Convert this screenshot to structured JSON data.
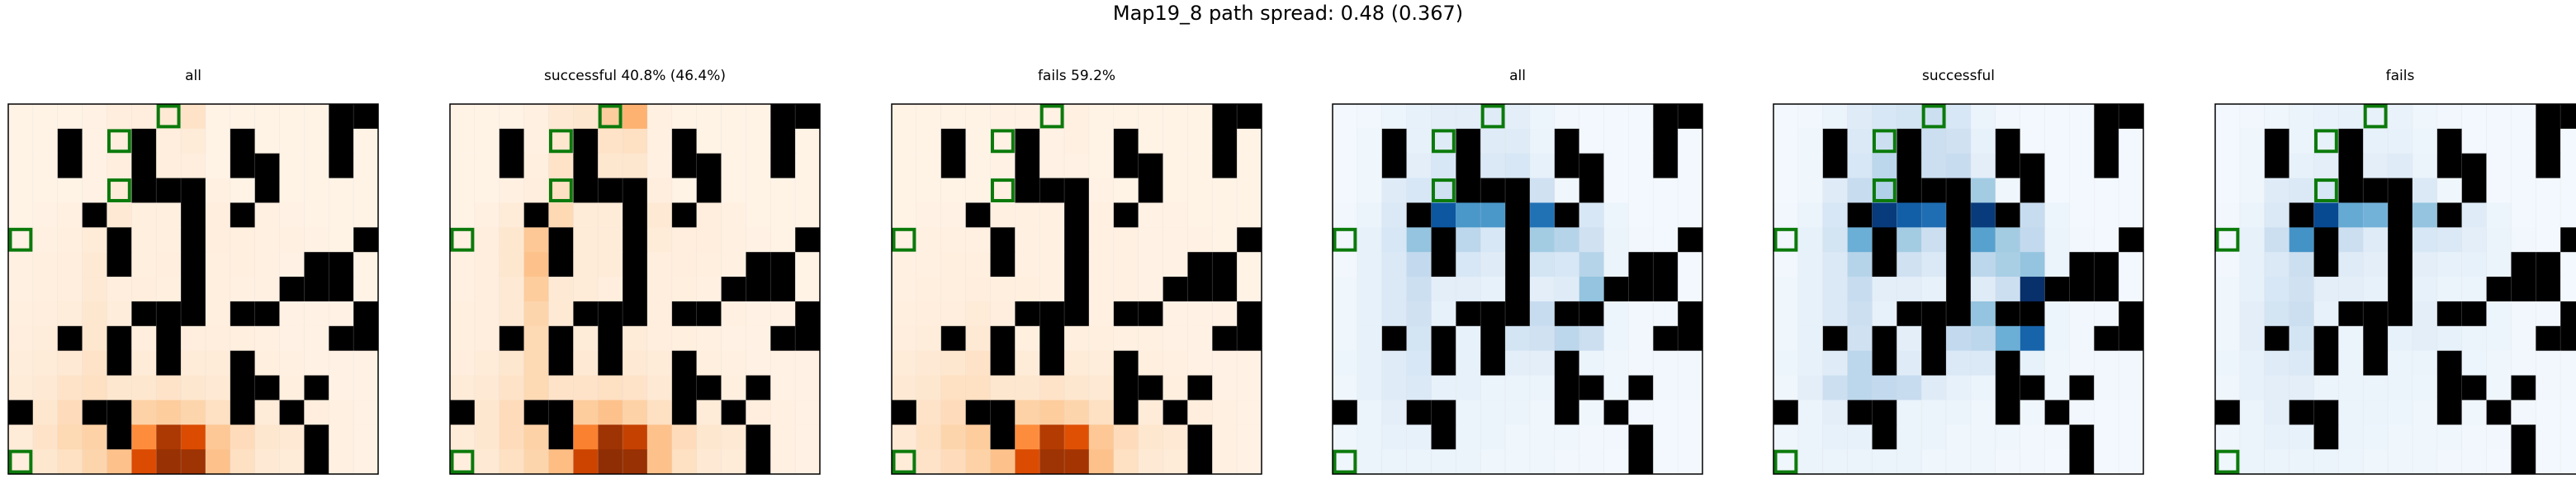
{
  "figure": {
    "suptitle": "Map19_8 path spread: 0.48 (0.367)"
  },
  "chart_data": [
    {
      "type": "heatmap",
      "title": "all",
      "colormap": "Oranges"
    },
    {
      "type": "heatmap",
      "title": "successful 40.8% (46.4%)",
      "colormap": "Oranges"
    },
    {
      "type": "heatmap",
      "title": "fails 59.2%",
      "colormap": "Oranges"
    },
    {
      "type": "heatmap",
      "title": "all",
      "colormap": "Blues"
    },
    {
      "type": "heatmap",
      "title": "successful",
      "colormap": "Blues"
    },
    {
      "type": "heatmap",
      "title": "fails",
      "colormap": "Blues"
    }
  ],
  "grid": {
    "rows": 15,
    "cols": 15
  },
  "walls": [
    [
      0,
      13
    ],
    [
      0,
      14
    ],
    [
      1,
      2
    ],
    [
      1,
      5
    ],
    [
      1,
      9
    ],
    [
      1,
      13
    ],
    [
      2,
      2
    ],
    [
      2,
      5
    ],
    [
      2,
      9
    ],
    [
      2,
      10
    ],
    [
      2,
      13
    ],
    [
      3,
      5
    ],
    [
      3,
      6
    ],
    [
      3,
      7
    ],
    [
      3,
      10
    ],
    [
      4,
      3
    ],
    [
      4,
      7
    ],
    [
      4,
      9
    ],
    [
      5,
      4
    ],
    [
      5,
      7
    ],
    [
      5,
      14
    ],
    [
      6,
      4
    ],
    [
      6,
      7
    ],
    [
      6,
      12
    ],
    [
      6,
      13
    ],
    [
      7,
      7
    ],
    [
      7,
      11
    ],
    [
      7,
      12
    ],
    [
      7,
      13
    ],
    [
      8,
      5
    ],
    [
      8,
      6
    ],
    [
      8,
      7
    ],
    [
      8,
      9
    ],
    [
      8,
      10
    ],
    [
      8,
      14
    ],
    [
      9,
      2
    ],
    [
      9,
      4
    ],
    [
      9,
      6
    ],
    [
      9,
      13
    ],
    [
      9,
      14
    ],
    [
      10,
      4
    ],
    [
      10,
      6
    ],
    [
      10,
      9
    ],
    [
      11,
      9
    ],
    [
      11,
      10
    ],
    [
      11,
      12
    ],
    [
      12,
      0
    ],
    [
      12,
      3
    ],
    [
      12,
      4
    ],
    [
      12,
      9
    ],
    [
      12,
      11
    ],
    [
      13,
      4
    ],
    [
      13,
      12
    ],
    [
      14,
      12
    ]
  ],
  "markers": [
    [
      0,
      6
    ],
    [
      1,
      4
    ],
    [
      3,
      4
    ],
    [
      5,
      0
    ],
    [
      14,
      0
    ]
  ],
  "heat_all_orange": [
    [
      0.02,
      0.02,
      0.02,
      0.03,
      0.06,
      0.06,
      0.1,
      0.14,
      0.02,
      0.02,
      0.02,
      0.02,
      0.02,
      0.0,
      0.0
    ],
    [
      0.02,
      0.02,
      0.0,
      0.03,
      0.06,
      0.0,
      0.06,
      0.08,
      0.02,
      0.0,
      0.02,
      0.02,
      0.02,
      0.0,
      0.02
    ],
    [
      0.02,
      0.02,
      0.0,
      0.03,
      0.06,
      0.0,
      0.06,
      0.06,
      0.02,
      0.0,
      0.0,
      0.02,
      0.02,
      0.0,
      0.02
    ],
    [
      0.02,
      0.02,
      0.02,
      0.03,
      0.08,
      0.0,
      0.0,
      0.0,
      0.04,
      0.02,
      0.0,
      0.02,
      0.02,
      0.02,
      0.02
    ],
    [
      0.02,
      0.03,
      0.04,
      0.0,
      0.1,
      0.05,
      0.05,
      0.0,
      0.06,
      0.0,
      0.04,
      0.03,
      0.02,
      0.02,
      0.02
    ],
    [
      0.03,
      0.04,
      0.05,
      0.08,
      0.0,
      0.05,
      0.05,
      0.0,
      0.06,
      0.05,
      0.04,
      0.04,
      0.03,
      0.02,
      0.0
    ],
    [
      0.04,
      0.05,
      0.06,
      0.1,
      0.0,
      0.05,
      0.06,
      0.0,
      0.05,
      0.05,
      0.04,
      0.03,
      0.0,
      0.0,
      0.02
    ],
    [
      0.04,
      0.05,
      0.06,
      0.1,
      0.06,
      0.06,
      0.05,
      0.0,
      0.05,
      0.04,
      0.04,
      0.0,
      0.0,
      0.0,
      0.02
    ],
    [
      0.05,
      0.06,
      0.07,
      0.12,
      0.07,
      0.0,
      0.0,
      0.0,
      0.05,
      0.0,
      0.0,
      0.03,
      0.03,
      0.03,
      0.0
    ],
    [
      0.06,
      0.07,
      0.0,
      0.12,
      0.0,
      0.06,
      0.0,
      0.06,
      0.06,
      0.05,
      0.04,
      0.03,
      0.03,
      0.0,
      0.0
    ],
    [
      0.07,
      0.08,
      0.1,
      0.14,
      0.0,
      0.08,
      0.0,
      0.08,
      0.08,
      0.0,
      0.05,
      0.04,
      0.03,
      0.03,
      0.03
    ],
    [
      0.08,
      0.1,
      0.14,
      0.16,
      0.12,
      0.12,
      0.14,
      0.12,
      0.1,
      0.0,
      0.0,
      0.05,
      0.04,
      0.03,
      0.03
    ],
    [
      0.0,
      0.12,
      0.18,
      0.0,
      0.0,
      0.24,
      0.26,
      0.22,
      0.16,
      0.0,
      0.08,
      0.0,
      0.06,
      0.04,
      0.03
    ],
    [
      0.08,
      0.14,
      0.2,
      0.24,
      0.0,
      0.5,
      0.86,
      0.74,
      0.28,
      0.18,
      0.12,
      0.1,
      0.0,
      0.04,
      0.03
    ],
    [
      0.06,
      0.12,
      0.16,
      0.22,
      0.3,
      0.74,
      0.92,
      0.9,
      0.3,
      0.16,
      0.1,
      0.08,
      0.0,
      0.04,
      0.03
    ]
  ],
  "heat_success_orange": [
    [
      0.02,
      0.02,
      0.02,
      0.04,
      0.1,
      0.12,
      0.26,
      0.36,
      0.04,
      0.02,
      0.02,
      0.02,
      0.02,
      0.0,
      0.0
    ],
    [
      0.02,
      0.02,
      0.0,
      0.04,
      0.12,
      0.0,
      0.14,
      0.16,
      0.04,
      0.0,
      0.02,
      0.02,
      0.02,
      0.0,
      0.02
    ],
    [
      0.02,
      0.02,
      0.0,
      0.05,
      0.14,
      0.0,
      0.12,
      0.12,
      0.04,
      0.0,
      0.0,
      0.02,
      0.02,
      0.0,
      0.02
    ],
    [
      0.02,
      0.02,
      0.04,
      0.06,
      0.16,
      0.0,
      0.0,
      0.0,
      0.06,
      0.02,
      0.0,
      0.02,
      0.02,
      0.02,
      0.02
    ],
    [
      0.02,
      0.04,
      0.08,
      0.0,
      0.2,
      0.08,
      0.08,
      0.0,
      0.1,
      0.0,
      0.06,
      0.04,
      0.02,
      0.02,
      0.02
    ],
    [
      0.04,
      0.06,
      0.12,
      0.28,
      0.0,
      0.08,
      0.08,
      0.0,
      0.08,
      0.06,
      0.06,
      0.04,
      0.03,
      0.02,
      0.0
    ],
    [
      0.04,
      0.06,
      0.12,
      0.3,
      0.0,
      0.08,
      0.08,
      0.0,
      0.06,
      0.06,
      0.05,
      0.04,
      0.0,
      0.0,
      0.02
    ],
    [
      0.04,
      0.06,
      0.1,
      0.26,
      0.1,
      0.08,
      0.06,
      0.0,
      0.06,
      0.05,
      0.04,
      0.0,
      0.0,
      0.0,
      0.02
    ],
    [
      0.05,
      0.06,
      0.1,
      0.22,
      0.1,
      0.0,
      0.0,
      0.0,
      0.06,
      0.0,
      0.0,
      0.04,
      0.03,
      0.03,
      0.0
    ],
    [
      0.05,
      0.06,
      0.0,
      0.2,
      0.0,
      0.08,
      0.0,
      0.08,
      0.06,
      0.05,
      0.04,
      0.03,
      0.03,
      0.0,
      0.0
    ],
    [
      0.06,
      0.08,
      0.12,
      0.2,
      0.0,
      0.1,
      0.0,
      0.1,
      0.08,
      0.0,
      0.05,
      0.04,
      0.03,
      0.03,
      0.03
    ],
    [
      0.08,
      0.1,
      0.14,
      0.2,
      0.14,
      0.14,
      0.16,
      0.14,
      0.1,
      0.0,
      0.0,
      0.05,
      0.04,
      0.03,
      0.03
    ],
    [
      0.0,
      0.12,
      0.18,
      0.0,
      0.0,
      0.26,
      0.3,
      0.24,
      0.16,
      0.0,
      0.08,
      0.0,
      0.06,
      0.04,
      0.03
    ],
    [
      0.08,
      0.12,
      0.18,
      0.24,
      0.0,
      0.54,
      0.9,
      0.8,
      0.3,
      0.18,
      0.12,
      0.1,
      0.0,
      0.04,
      0.03
    ],
    [
      0.06,
      0.1,
      0.16,
      0.22,
      0.32,
      0.78,
      0.95,
      0.92,
      0.3,
      0.16,
      0.1,
      0.08,
      0.0,
      0.04,
      0.03
    ]
  ],
  "heat_fail_orange": [
    [
      0.02,
      0.02,
      0.02,
      0.02,
      0.03,
      0.03,
      0.03,
      0.04,
      0.02,
      0.02,
      0.02,
      0.02,
      0.02,
      0.0,
      0.0
    ],
    [
      0.02,
      0.02,
      0.0,
      0.02,
      0.03,
      0.0,
      0.03,
      0.04,
      0.02,
      0.0,
      0.02,
      0.02,
      0.02,
      0.0,
      0.02
    ],
    [
      0.02,
      0.02,
      0.0,
      0.02,
      0.03,
      0.0,
      0.03,
      0.03,
      0.02,
      0.0,
      0.0,
      0.02,
      0.02,
      0.0,
      0.02
    ],
    [
      0.02,
      0.02,
      0.02,
      0.02,
      0.04,
      0.0,
      0.0,
      0.0,
      0.03,
      0.02,
      0.0,
      0.02,
      0.02,
      0.02,
      0.02
    ],
    [
      0.02,
      0.03,
      0.03,
      0.0,
      0.04,
      0.04,
      0.04,
      0.0,
      0.04,
      0.0,
      0.03,
      0.03,
      0.02,
      0.02,
      0.02
    ],
    [
      0.03,
      0.04,
      0.04,
      0.04,
      0.0,
      0.04,
      0.04,
      0.0,
      0.04,
      0.04,
      0.03,
      0.03,
      0.03,
      0.02,
      0.0
    ],
    [
      0.04,
      0.04,
      0.05,
      0.05,
      0.0,
      0.04,
      0.04,
      0.0,
      0.04,
      0.04,
      0.03,
      0.03,
      0.0,
      0.0,
      0.02
    ],
    [
      0.04,
      0.05,
      0.05,
      0.06,
      0.05,
      0.05,
      0.04,
      0.0,
      0.04,
      0.04,
      0.03,
      0.0,
      0.0,
      0.0,
      0.02
    ],
    [
      0.05,
      0.06,
      0.06,
      0.08,
      0.06,
      0.0,
      0.0,
      0.0,
      0.04,
      0.0,
      0.0,
      0.03,
      0.03,
      0.03,
      0.0
    ],
    [
      0.06,
      0.07,
      0.0,
      0.1,
      0.0,
      0.05,
      0.0,
      0.05,
      0.05,
      0.04,
      0.04,
      0.03,
      0.03,
      0.0,
      0.0
    ],
    [
      0.08,
      0.1,
      0.12,
      0.14,
      0.0,
      0.08,
      0.0,
      0.08,
      0.07,
      0.0,
      0.05,
      0.04,
      0.03,
      0.03,
      0.03
    ],
    [
      0.1,
      0.12,
      0.16,
      0.16,
      0.12,
      0.12,
      0.14,
      0.12,
      0.1,
      0.0,
      0.0,
      0.05,
      0.04,
      0.03,
      0.03
    ],
    [
      0.0,
      0.14,
      0.18,
      0.0,
      0.0,
      0.24,
      0.26,
      0.22,
      0.16,
      0.0,
      0.08,
      0.0,
      0.06,
      0.04,
      0.03
    ],
    [
      0.1,
      0.16,
      0.22,
      0.26,
      0.0,
      0.5,
      0.84,
      0.72,
      0.28,
      0.18,
      0.12,
      0.1,
      0.0,
      0.04,
      0.03
    ],
    [
      0.08,
      0.14,
      0.18,
      0.24,
      0.3,
      0.74,
      0.9,
      0.88,
      0.3,
      0.16,
      0.1,
      0.08,
      0.0,
      0.04,
      0.03
    ]
  ],
  "heat_all_blue": [
    [
      0.02,
      0.03,
      0.05,
      0.08,
      0.1,
      0.1,
      0.12,
      0.1,
      0.05,
      0.03,
      0.02,
      0.02,
      0.02,
      0.0,
      0.0
    ],
    [
      0.02,
      0.04,
      0.0,
      0.08,
      0.12,
      0.0,
      0.12,
      0.12,
      0.06,
      0.0,
      0.02,
      0.02,
      0.02,
      0.0,
      0.02
    ],
    [
      0.02,
      0.04,
      0.0,
      0.1,
      0.16,
      0.0,
      0.14,
      0.16,
      0.08,
      0.0,
      0.0,
      0.02,
      0.02,
      0.0,
      0.02
    ],
    [
      0.02,
      0.04,
      0.12,
      0.16,
      0.2,
      0.0,
      0.0,
      0.0,
      0.2,
      0.04,
      0.0,
      0.02,
      0.02,
      0.02,
      0.02
    ],
    [
      0.03,
      0.06,
      0.14,
      0.0,
      0.85,
      0.6,
      0.6,
      0.0,
      0.75,
      0.0,
      0.16,
      0.05,
      0.02,
      0.02,
      0.02
    ],
    [
      0.03,
      0.08,
      0.16,
      0.4,
      0.0,
      0.28,
      0.16,
      0.0,
      0.36,
      0.3,
      0.2,
      0.06,
      0.03,
      0.02,
      0.0
    ],
    [
      0.03,
      0.08,
      0.14,
      0.26,
      0.0,
      0.16,
      0.12,
      0.0,
      0.18,
      0.16,
      0.3,
      0.06,
      0.0,
      0.0,
      0.02
    ],
    [
      0.04,
      0.08,
      0.14,
      0.22,
      0.1,
      0.1,
      0.08,
      0.0,
      0.1,
      0.12,
      0.4,
      0.0,
      0.0,
      0.0,
      0.02
    ],
    [
      0.04,
      0.08,
      0.14,
      0.2,
      0.08,
      0.0,
      0.0,
      0.0,
      0.24,
      0.0,
      0.0,
      0.05,
      0.03,
      0.03,
      0.0
    ],
    [
      0.04,
      0.08,
      0.0,
      0.18,
      0.0,
      0.08,
      0.0,
      0.18,
      0.2,
      0.28,
      0.22,
      0.05,
      0.03,
      0.0,
      0.0
    ],
    [
      0.05,
      0.08,
      0.12,
      0.16,
      0.0,
      0.08,
      0.0,
      0.1,
      0.1,
      0.0,
      0.06,
      0.04,
      0.03,
      0.03,
      0.03
    ],
    [
      0.04,
      0.08,
      0.12,
      0.14,
      0.08,
      0.08,
      0.06,
      0.06,
      0.06,
      0.0,
      0.0,
      0.04,
      0.03,
      0.03,
      0.03
    ],
    [
      0.0,
      0.06,
      0.1,
      0.0,
      0.0,
      0.06,
      0.06,
      0.06,
      0.04,
      0.0,
      0.04,
      0.0,
      0.03,
      0.02,
      0.02
    ],
    [
      0.04,
      0.06,
      0.08,
      0.08,
      0.0,
      0.06,
      0.06,
      0.04,
      0.04,
      0.04,
      0.03,
      0.03,
      0.0,
      0.02,
      0.02
    ],
    [
      0.04,
      0.06,
      0.06,
      0.06,
      0.06,
      0.06,
      0.04,
      0.04,
      0.04,
      0.03,
      0.03,
      0.02,
      0.0,
      0.02,
      0.02
    ]
  ],
  "heat_success_blue": [
    [
      0.02,
      0.03,
      0.06,
      0.12,
      0.16,
      0.18,
      0.22,
      0.16,
      0.06,
      0.03,
      0.02,
      0.02,
      0.02,
      0.0,
      0.0
    ],
    [
      0.02,
      0.04,
      0.0,
      0.14,
      0.22,
      0.0,
      0.22,
      0.2,
      0.08,
      0.0,
      0.02,
      0.02,
      0.02,
      0.0,
      0.02
    ],
    [
      0.02,
      0.04,
      0.0,
      0.16,
      0.28,
      0.0,
      0.22,
      0.24,
      0.1,
      0.0,
      0.0,
      0.02,
      0.02,
      0.0,
      0.02
    ],
    [
      0.02,
      0.04,
      0.12,
      0.24,
      0.32,
      0.0,
      0.0,
      0.0,
      0.36,
      0.04,
      0.0,
      0.02,
      0.02,
      0.02,
      0.02
    ],
    [
      0.03,
      0.06,
      0.16,
      0.0,
      0.96,
      0.82,
      0.76,
      0.0,
      0.96,
      0.0,
      0.24,
      0.05,
      0.02,
      0.02,
      0.02
    ],
    [
      0.03,
      0.08,
      0.18,
      0.5,
      0.0,
      0.36,
      0.22,
      0.0,
      0.56,
      0.36,
      0.26,
      0.06,
      0.03,
      0.02,
      0.0
    ],
    [
      0.03,
      0.08,
      0.14,
      0.3,
      0.0,
      0.2,
      0.14,
      0.0,
      0.28,
      0.34,
      0.4,
      0.06,
      0.0,
      0.0,
      0.02
    ],
    [
      0.04,
      0.08,
      0.14,
      0.24,
      0.1,
      0.1,
      0.08,
      0.0,
      0.12,
      0.22,
      1.0,
      0.0,
      0.0,
      0.0,
      0.02
    ],
    [
      0.04,
      0.08,
      0.14,
      0.22,
      0.08,
      0.0,
      0.0,
      0.0,
      0.4,
      0.0,
      0.0,
      0.05,
      0.03,
      0.03,
      0.0
    ],
    [
      0.04,
      0.08,
      0.0,
      0.2,
      0.0,
      0.1,
      0.0,
      0.26,
      0.28,
      0.5,
      0.8,
      0.05,
      0.03,
      0.0,
      0.0
    ],
    [
      0.05,
      0.08,
      0.12,
      0.28,
      0.0,
      0.12,
      0.0,
      0.14,
      0.14,
      0.0,
      0.08,
      0.04,
      0.03,
      0.03,
      0.03
    ],
    [
      0.04,
      0.1,
      0.22,
      0.28,
      0.26,
      0.24,
      0.12,
      0.08,
      0.06,
      0.0,
      0.0,
      0.04,
      0.03,
      0.03,
      0.03
    ],
    [
      0.0,
      0.06,
      0.1,
      0.0,
      0.0,
      0.06,
      0.06,
      0.06,
      0.04,
      0.0,
      0.04,
      0.0,
      0.03,
      0.02,
      0.02
    ],
    [
      0.04,
      0.06,
      0.08,
      0.08,
      0.0,
      0.06,
      0.06,
      0.04,
      0.04,
      0.04,
      0.03,
      0.03,
      0.0,
      0.02,
      0.02
    ],
    [
      0.04,
      0.06,
      0.06,
      0.06,
      0.06,
      0.06,
      0.04,
      0.04,
      0.04,
      0.03,
      0.03,
      0.02,
      0.0,
      0.02,
      0.02
    ]
  ],
  "heat_fail_blue": [
    [
      0.02,
      0.03,
      0.04,
      0.06,
      0.07,
      0.08,
      0.08,
      0.07,
      0.04,
      0.03,
      0.02,
      0.02,
      0.02,
      0.0,
      0.0
    ],
    [
      0.02,
      0.04,
      0.0,
      0.06,
      0.08,
      0.0,
      0.08,
      0.08,
      0.05,
      0.0,
      0.02,
      0.02,
      0.02,
      0.0,
      0.02
    ],
    [
      0.02,
      0.04,
      0.0,
      0.08,
      0.1,
      0.0,
      0.1,
      0.12,
      0.06,
      0.0,
      0.0,
      0.02,
      0.02,
      0.0,
      0.02
    ],
    [
      0.02,
      0.04,
      0.12,
      0.14,
      0.16,
      0.0,
      0.0,
      0.0,
      0.14,
      0.04,
      0.0,
      0.02,
      0.02,
      0.02,
      0.02
    ],
    [
      0.03,
      0.06,
      0.14,
      0.0,
      0.9,
      0.52,
      0.48,
      0.0,
      0.4,
      0.0,
      0.12,
      0.05,
      0.02,
      0.02,
      0.02
    ],
    [
      0.03,
      0.08,
      0.22,
      0.62,
      0.0,
      0.22,
      0.12,
      0.0,
      0.16,
      0.14,
      0.1,
      0.06,
      0.03,
      0.02,
      0.0
    ],
    [
      0.03,
      0.08,
      0.14,
      0.22,
      0.0,
      0.12,
      0.1,
      0.0,
      0.1,
      0.08,
      0.08,
      0.06,
      0.0,
      0.0,
      0.02
    ],
    [
      0.04,
      0.08,
      0.16,
      0.2,
      0.1,
      0.1,
      0.08,
      0.0,
      0.08,
      0.06,
      0.06,
      0.0,
      0.0,
      0.0,
      0.02
    ],
    [
      0.04,
      0.1,
      0.18,
      0.22,
      0.08,
      0.0,
      0.0,
      0.0,
      0.1,
      0.0,
      0.0,
      0.05,
      0.03,
      0.03,
      0.0
    ],
    [
      0.04,
      0.1,
      0.0,
      0.18,
      0.0,
      0.06,
      0.0,
      0.08,
      0.1,
      0.08,
      0.06,
      0.05,
      0.03,
      0.0,
      0.0
    ],
    [
      0.05,
      0.08,
      0.12,
      0.14,
      0.0,
      0.06,
      0.0,
      0.06,
      0.06,
      0.0,
      0.05,
      0.04,
      0.03,
      0.03,
      0.03
    ],
    [
      0.04,
      0.08,
      0.1,
      0.1,
      0.06,
      0.06,
      0.06,
      0.06,
      0.05,
      0.0,
      0.0,
      0.04,
      0.03,
      0.03,
      0.03
    ],
    [
      0.0,
      0.06,
      0.1,
      0.0,
      0.0,
      0.06,
      0.06,
      0.05,
      0.04,
      0.0,
      0.04,
      0.0,
      0.03,
      0.02,
      0.02
    ],
    [
      0.04,
      0.06,
      0.08,
      0.08,
      0.0,
      0.06,
      0.05,
      0.04,
      0.04,
      0.04,
      0.03,
      0.03,
      0.0,
      0.02,
      0.02
    ],
    [
      0.04,
      0.06,
      0.06,
      0.06,
      0.06,
      0.05,
      0.04,
      0.04,
      0.04,
      0.03,
      0.03,
      0.02,
      0.0,
      0.02,
      0.02
    ]
  ],
  "colors": {
    "wall": "#000000",
    "marker": "#0b7a0b",
    "frame": "#000000",
    "cell_line": "#d6d6d6"
  }
}
